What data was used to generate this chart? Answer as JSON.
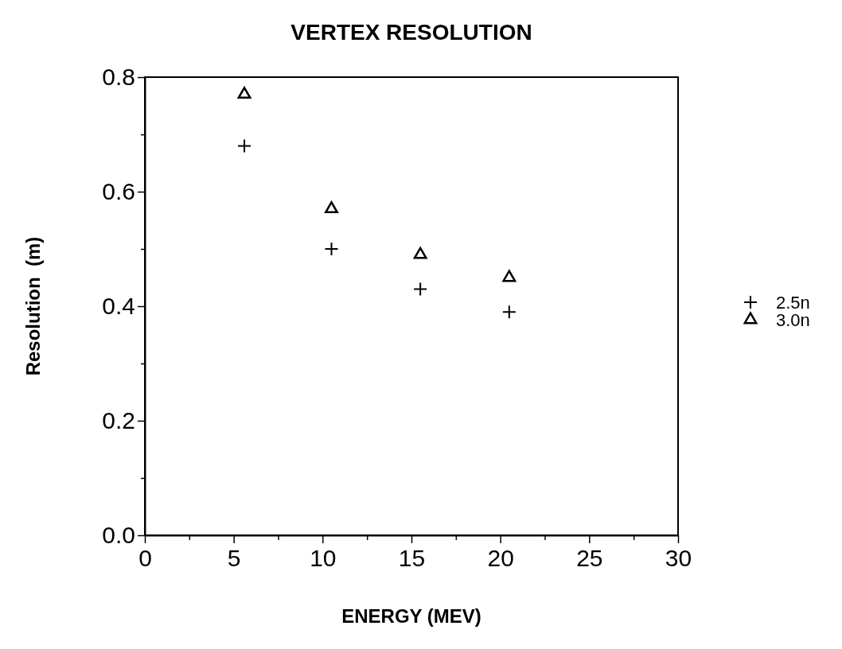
{
  "chart_data": {
    "type": "scatter",
    "title": "VERTEX RESOLUTION",
    "xlabel": "ENERGY (MEV)",
    "ylabel": "Resolution  (m)",
    "xlim": [
      0,
      30
    ],
    "ylim": [
      0,
      0.8
    ],
    "xticks": [
      0,
      {
        "value": 2.5,
        "label": null
      },
      5,
      {
        "value": 7.5,
        "label": null
      },
      10,
      {
        "value": 12.5,
        "label": null
      },
      15,
      {
        "value": 17.5,
        "label": null
      },
      20,
      {
        "value": 22.5,
        "label": null
      },
      25,
      {
        "value": 27.5,
        "label": null
      },
      30
    ],
    "yticks": [
      {
        "value": 0,
        "label": "0.0"
      },
      {
        "value": 0.1,
        "label": null
      },
      0.2,
      {
        "value": 0.3,
        "label": null
      },
      0.4,
      {
        "value": 0.5,
        "label": null
      },
      0.6,
      {
        "value": 0.7,
        "label": null
      },
      0.8
    ],
    "legend": "right",
    "grid": false,
    "series": [
      {
        "name": "2.5n",
        "color": "#000000",
        "marker": "cross",
        "x": [
          5.6,
          10.5,
          15.5,
          20.5
        ],
        "values": [
          0.68,
          0.5,
          0.43,
          0.39
        ]
      },
      {
        "name": "3.0n",
        "color": "#000000",
        "marker": "triangle",
        "x": [
          5.6,
          10.5,
          15.5,
          20.5
        ],
        "values": [
          0.77,
          0.57,
          0.49,
          0.45
        ]
      }
    ]
  }
}
